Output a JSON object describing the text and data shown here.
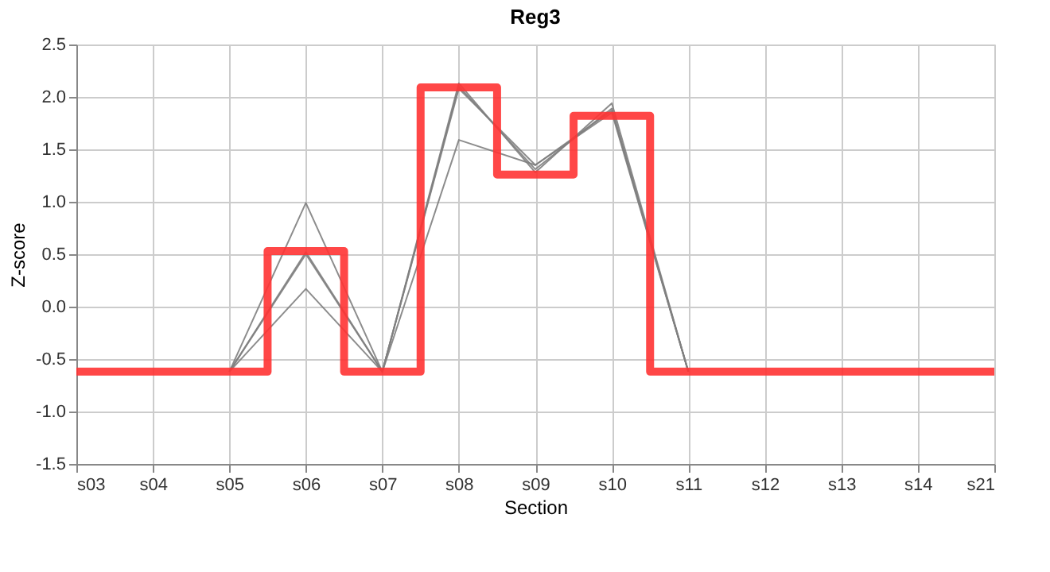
{
  "chart_data": {
    "type": "line",
    "title": "Reg3",
    "xlabel": "Section",
    "ylabel": "Z-score",
    "categories": [
      "s03",
      "s04",
      "s05",
      "s06",
      "s07",
      "s08",
      "s09",
      "s10",
      "s11",
      "s12",
      "s13",
      "s14",
      "s21"
    ],
    "series": [
      {
        "color": "#808080",
        "values": [
          null,
          null,
          -0.62,
          0.99,
          -0.62,
          2.13,
          1.28,
          1.94,
          -0.62,
          null,
          null,
          null,
          null
        ]
      },
      {
        "color": "#808080",
        "values": [
          null,
          null,
          -0.62,
          0.52,
          -0.62,
          2.1,
          1.31,
          1.89,
          -0.62,
          null,
          null,
          null,
          null
        ]
      },
      {
        "color": "#808080",
        "values": [
          null,
          null,
          -0.62,
          0.5,
          -0.62,
          2.08,
          1.35,
          1.87,
          -0.62,
          null,
          null,
          null,
          null
        ]
      },
      {
        "color": "#808080",
        "values": [
          null,
          null,
          -0.62,
          0.17,
          -0.62,
          1.59,
          1.35,
          1.85,
          -0.62,
          null,
          null,
          null,
          null
        ]
      },
      {
        "type": "step",
        "color": "#ff3333",
        "values": [
          -0.62,
          -0.62,
          -0.62,
          0.53,
          -0.62,
          2.09,
          1.26,
          1.82,
          -0.62,
          -0.62,
          -0.62,
          -0.62,
          -0.62
        ]
      }
    ],
    "ylim": [
      -1.5,
      2.5
    ],
    "yticks": [
      {
        "value": -1.5,
        "label": "-1.5"
      },
      {
        "value": -1,
        "label": "-1.0"
      },
      {
        "value": -0.5,
        "label": "-0.5"
      },
      {
        "value": 0,
        "label": "0.0"
      },
      {
        "value": 0.5,
        "label": "0.5"
      },
      {
        "value": 1,
        "label": "1.0"
      },
      {
        "value": 1.5,
        "label": "1.5"
      },
      {
        "value": 2,
        "label": "2.0"
      },
      {
        "value": 2.5,
        "label": "2.5"
      }
    ],
    "grid": true,
    "legend": false
  }
}
